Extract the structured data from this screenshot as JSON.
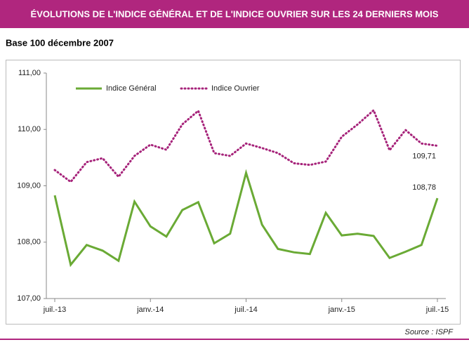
{
  "header": {
    "title": "ÉVOLUTIONS DE L'INDICE GÉNÉRAL ET DE L'INDICE OUVRIER SUR LES 24 DERNIERS MOIS"
  },
  "chart_data": {
    "type": "line",
    "subtitle": "Base 100 décembre 2007",
    "categories": [
      "juil.-13",
      null,
      null,
      null,
      null,
      null,
      "janv.-14",
      null,
      null,
      null,
      null,
      null,
      "juil.-14",
      null,
      null,
      null,
      null,
      null,
      "janv.-15",
      null,
      null,
      null,
      null,
      null,
      "juil.-15"
    ],
    "series": [
      {
        "name": "Indice Général",
        "color": "#6aaa35",
        "dash": false,
        "values": [
          108.83,
          107.6,
          107.95,
          107.85,
          107.67,
          108.72,
          108.28,
          108.1,
          108.57,
          108.71,
          107.98,
          108.15,
          109.23,
          108.31,
          107.88,
          107.82,
          107.79,
          108.52,
          108.12,
          108.15,
          108.11,
          107.72,
          107.83,
          107.95,
          108.78
        ],
        "value_labels": [
          null,
          null,
          null,
          null,
          null,
          null,
          null,
          null,
          null,
          null,
          null,
          null,
          null,
          null,
          null,
          null,
          null,
          null,
          null,
          null,
          null,
          null,
          null,
          null,
          "108,78"
        ]
      },
      {
        "name": "Indice Ouvrier",
        "color": "#a6237a",
        "dash": true,
        "values": [
          109.28,
          109.07,
          109.42,
          109.49,
          109.16,
          109.53,
          109.73,
          109.64,
          110.09,
          110.33,
          109.58,
          109.53,
          109.75,
          109.67,
          109.58,
          109.4,
          109.37,
          109.43,
          109.87,
          110.09,
          110.34,
          109.63,
          109.99,
          109.75,
          109.71
        ],
        "value_labels": [
          null,
          null,
          null,
          null,
          null,
          null,
          null,
          null,
          null,
          null,
          null,
          null,
          null,
          null,
          null,
          null,
          null,
          null,
          null,
          null,
          null,
          null,
          null,
          null,
          "109,71"
        ]
      }
    ],
    "ylim": [
      107,
      111
    ],
    "yticks": [
      {
        "value": 107,
        "label": "107,00"
      },
      {
        "value": 108,
        "label": "108,00"
      },
      {
        "value": 109,
        "label": "109,00"
      },
      {
        "value": 110,
        "label": "110,00"
      },
      {
        "value": 111,
        "label": "111,00"
      }
    ],
    "grid": false,
    "legend": "top-left",
    "source": "Source : ISPF"
  }
}
